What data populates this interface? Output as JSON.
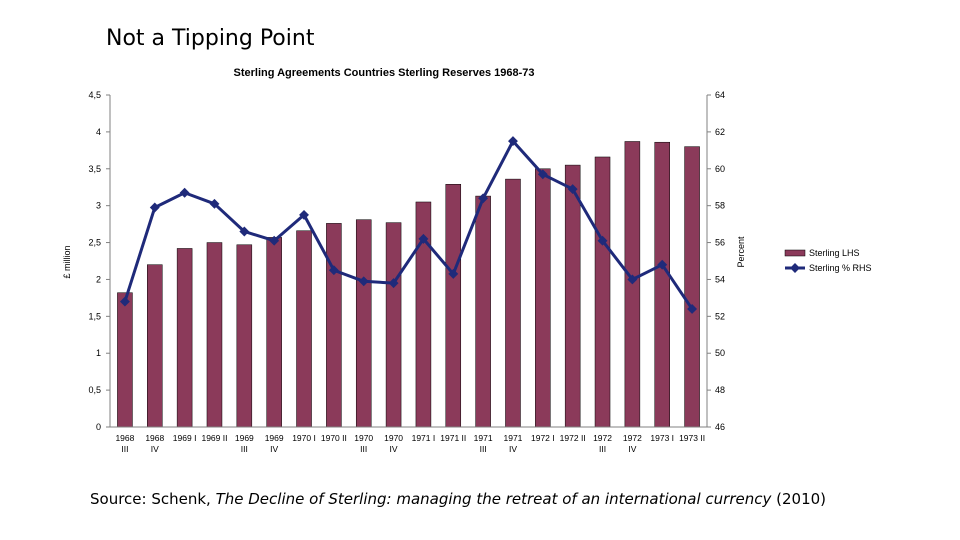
{
  "slide": {
    "title": "Not a Tipping Point",
    "source_prefix": "Source: Schenk,",
    "source_title": "The Decline of Sterling: managing the retreat of an international currency",
    "source_year": "(2010)"
  },
  "colors": {
    "bar": "#8B3A5A",
    "line": "#1F2A7A",
    "axis": "#808080"
  },
  "chart_data": {
    "type": "bar+line",
    "title": "Sterling Agreements Countries Sterling Reserves 1968-73",
    "ylabel_left": "£ million",
    "ylabel_right": "Percent",
    "ylim_left": [
      0,
      4.5
    ],
    "ylim_right": [
      46,
      64
    ],
    "left_ticks": [
      "0",
      "0,5",
      "1",
      "1,5",
      "2",
      "2,5",
      "3",
      "3,5",
      "4",
      "4,5"
    ],
    "right_ticks": [
      "46",
      "48",
      "50",
      "52",
      "54",
      "56",
      "58",
      "60",
      "62",
      "64"
    ],
    "categories": [
      [
        "1968",
        "III"
      ],
      [
        "1968",
        "IV"
      ],
      [
        "1969 I",
        ""
      ],
      [
        "1969 II",
        ""
      ],
      [
        "1969",
        "III"
      ],
      [
        "1969",
        "IV"
      ],
      [
        "1970 I",
        ""
      ],
      [
        "1970 II",
        ""
      ],
      [
        "1970",
        "III"
      ],
      [
        "1970",
        "IV"
      ],
      [
        "1971 I",
        ""
      ],
      [
        "1971 II",
        ""
      ],
      [
        "1971",
        "III"
      ],
      [
        "1971",
        "IV"
      ],
      [
        "1972 I",
        ""
      ],
      [
        "1972 II",
        ""
      ],
      [
        "1972",
        "III"
      ],
      [
        "1972",
        "IV"
      ],
      [
        "1973 I",
        ""
      ],
      [
        "1973 II",
        ""
      ]
    ],
    "series": [
      {
        "name": "Sterling LHS",
        "type": "bar",
        "axis": "left",
        "values": [
          1.82,
          2.2,
          2.42,
          2.5,
          2.47,
          2.57,
          2.66,
          2.76,
          2.81,
          2.77,
          3.05,
          3.29,
          3.13,
          3.36,
          3.5,
          3.55,
          3.66,
          3.87,
          3.86,
          3.8
        ]
      },
      {
        "name": "Sterling % RHS",
        "type": "line",
        "axis": "right",
        "values": [
          52.8,
          57.9,
          58.7,
          58.1,
          56.6,
          56.1,
          57.5,
          54.5,
          53.9,
          53.8,
          56.2,
          54.3,
          58.4,
          61.5,
          59.7,
          58.9,
          56.1,
          54.0,
          54.8,
          52.4
        ]
      }
    ],
    "legend": [
      "Sterling LHS",
      "Sterling % RHS"
    ],
    "legend_position": "right",
    "grid": false
  }
}
